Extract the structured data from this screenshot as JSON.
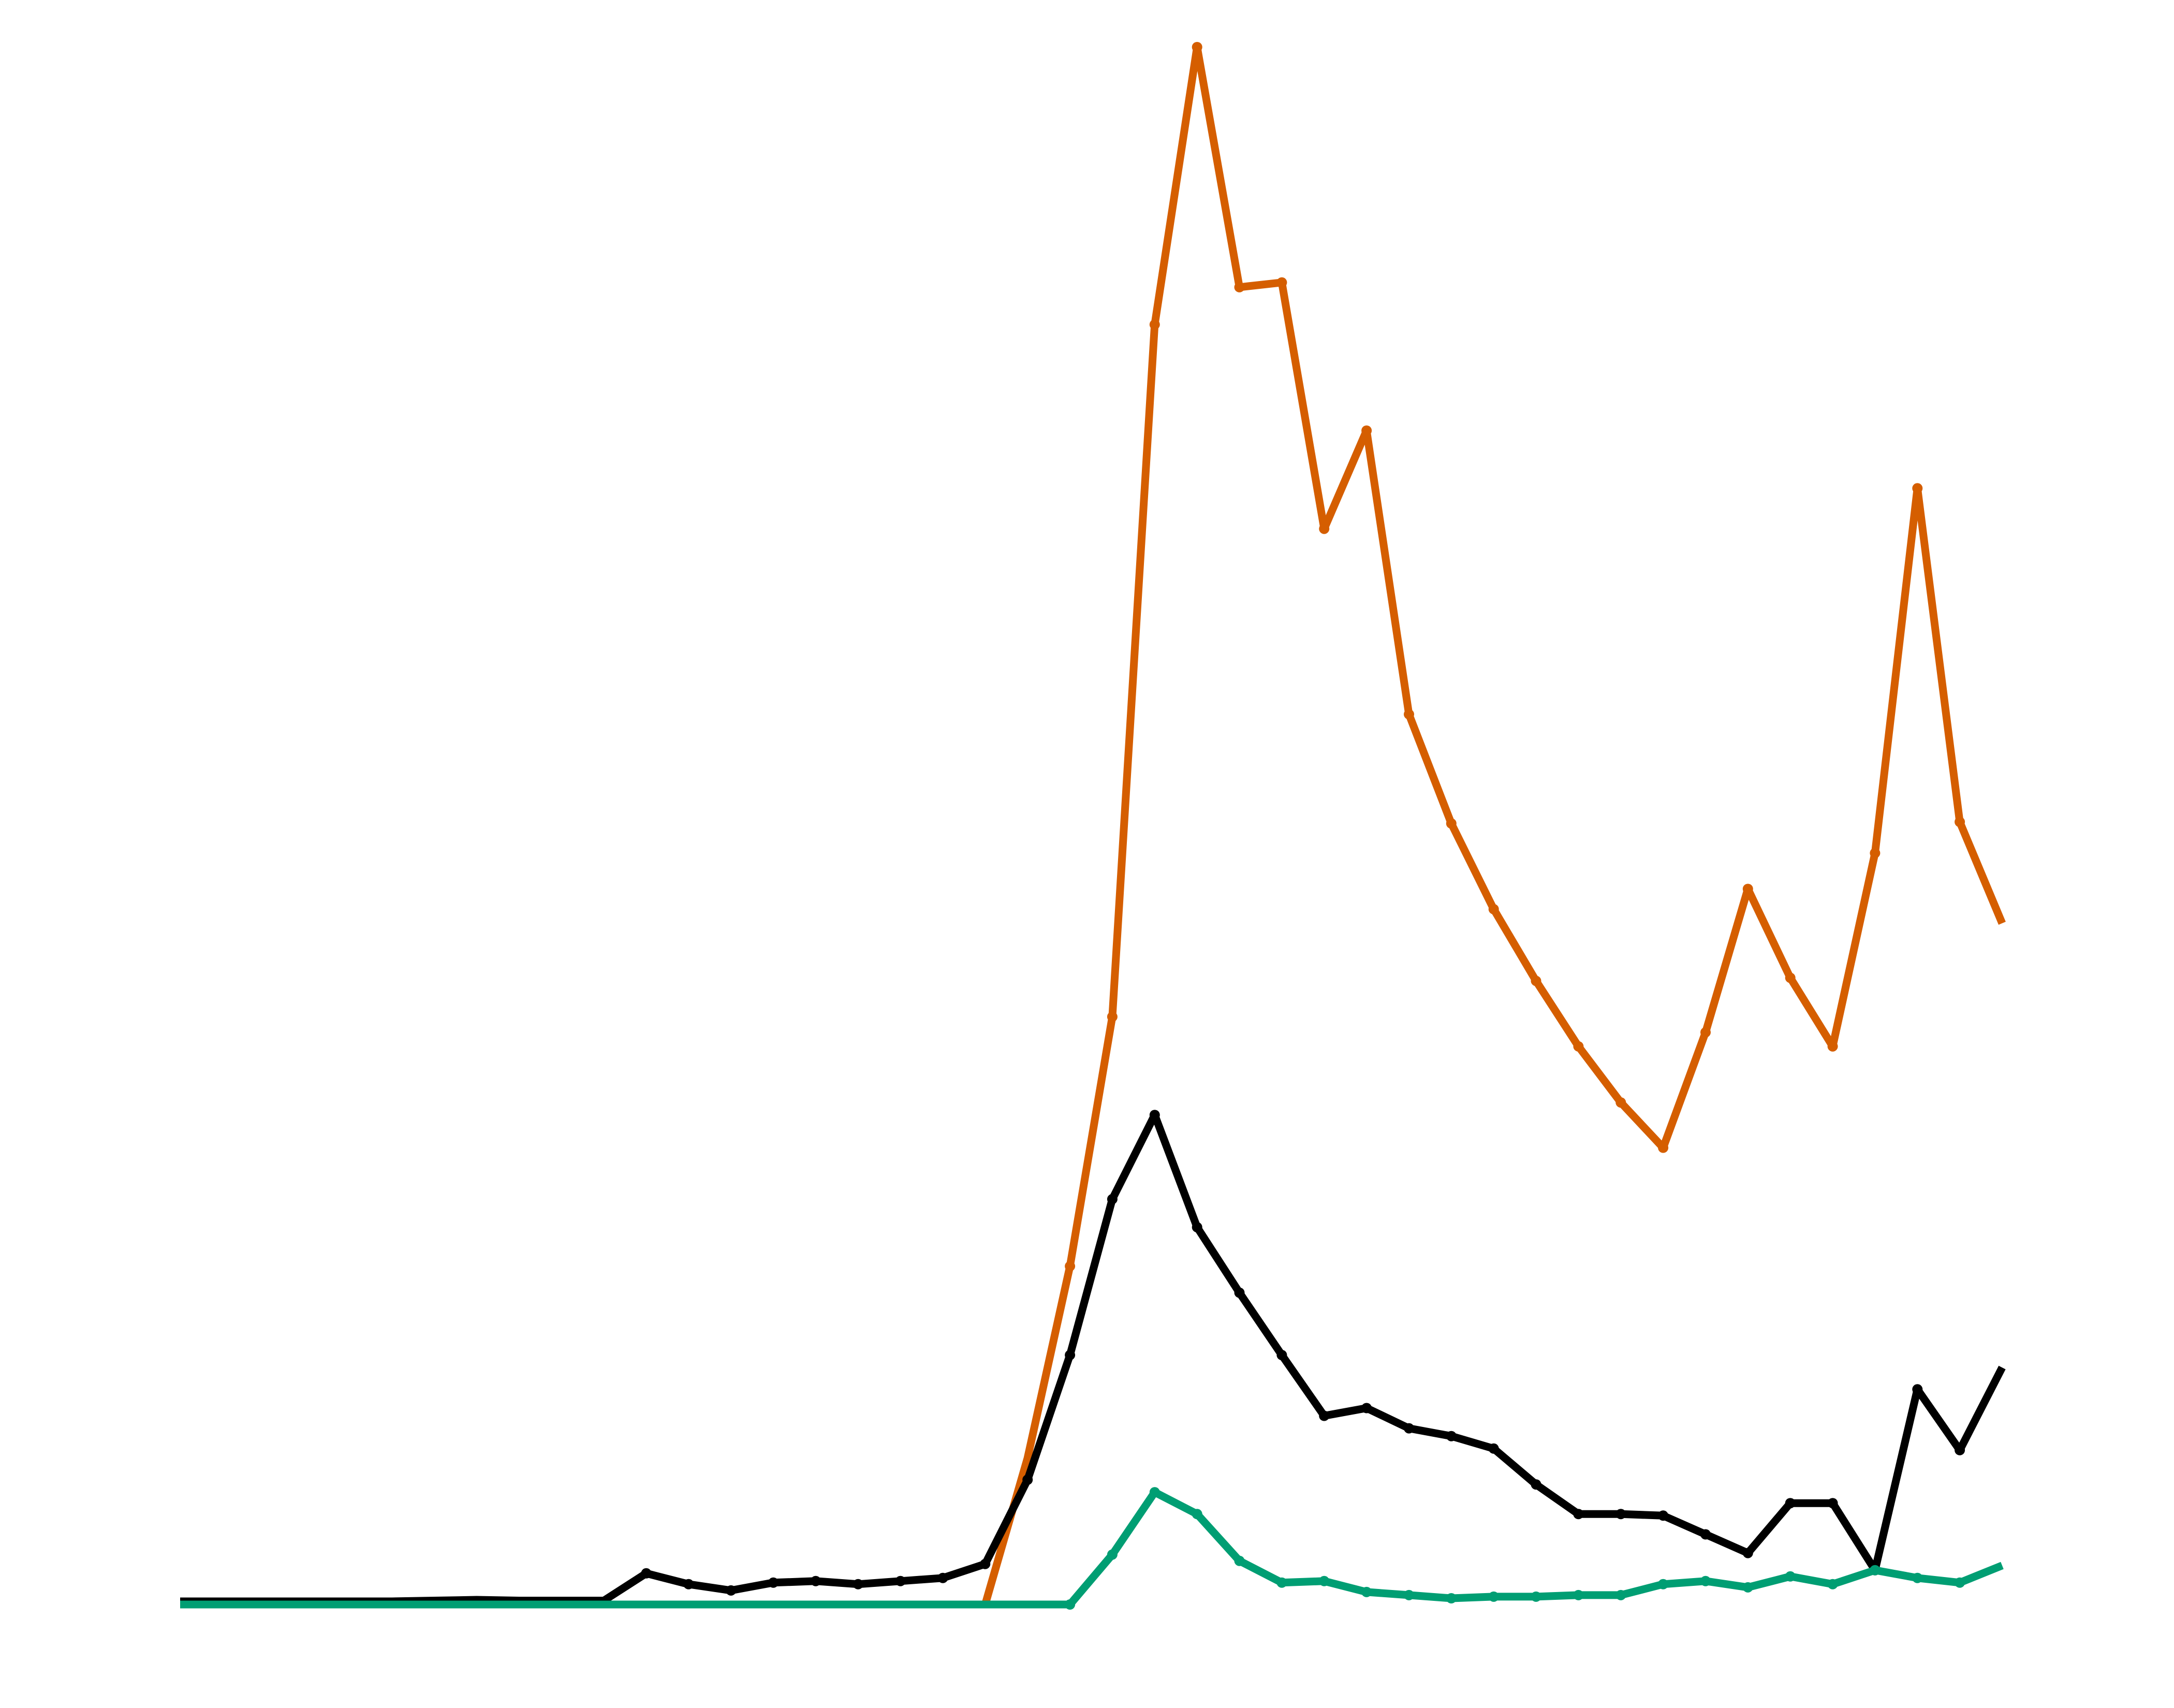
{
  "chart_data": {
    "type": "line",
    "title": "",
    "xlabel": "",
    "ylabel": "",
    "grid": false,
    "axes_visible": false,
    "legend": "none",
    "x": [
      0,
      1,
      2,
      3,
      4,
      5,
      6,
      7,
      8,
      9,
      10,
      11,
      12,
      13,
      14,
      15,
      16,
      17,
      18,
      19,
      20,
      21,
      22,
      23,
      24,
      25,
      26,
      27,
      28,
      29,
      30,
      31,
      32,
      33,
      34,
      35,
      36,
      37,
      38,
      39,
      40,
      41,
      42,
      43
    ],
    "xlim": [
      0,
      43
    ],
    "ylim": [
      0,
      100
    ],
    "series": [
      {
        "color": "#d55e00",
        "values": [
          0,
          0,
          0,
          0,
          0,
          0,
          0,
          0,
          0,
          0,
          0,
          0,
          0,
          0,
          0,
          0,
          0,
          0,
          0,
          0,
          9.4,
          21.7,
          37.7,
          82.1,
          99.9,
          84.5,
          84.8,
          69.0,
          75.3,
          57.1,
          50.1,
          44.6,
          40.0,
          35.8,
          32.2,
          29.3,
          36.7,
          45.9,
          40.2,
          35.8,
          48.2,
          71.6,
          50.2,
          43.7
        ],
        "marked": [
          21,
          22,
          23,
          24,
          25,
          26,
          27,
          28,
          29,
          30,
          31,
          32,
          33,
          34,
          35,
          36,
          37,
          38,
          39,
          40,
          41,
          42
        ]
      },
      {
        "color": "#000000",
        "values": [
          0.2,
          0.2,
          0.2,
          0.2,
          0.2,
          0.2,
          0.25,
          0.3,
          0.25,
          0.25,
          0.25,
          2.0,
          1.3,
          0.9,
          1.4,
          1.5,
          1.3,
          1.5,
          1.7,
          2.6,
          8.0,
          16.0,
          26.0,
          31.4,
          24.2,
          20.0,
          16.0,
          12.1,
          12.6,
          11.3,
          10.8,
          10.0,
          7.7,
          5.8,
          5.8,
          5.7,
          4.5,
          3.3,
          6.5,
          6.5,
          2.2,
          13.8,
          9.9,
          15.2
        ],
        "marked": [
          11,
          12,
          13,
          14,
          15,
          16,
          17,
          18,
          19,
          20,
          21,
          22,
          23,
          24,
          25,
          26,
          27,
          28,
          29,
          30,
          31,
          32,
          33,
          34,
          35,
          36,
          37,
          38,
          39,
          40,
          41,
          42
        ]
      },
      {
        "color": "#009e73",
        "values": [
          0,
          0,
          0,
          0,
          0,
          0,
          0,
          0,
          0,
          0,
          0,
          0,
          0,
          0,
          0,
          0,
          0,
          0,
          0,
          0,
          0,
          0,
          3.2,
          7.2,
          5.8,
          2.8,
          1.4,
          1.5,
          0.8,
          0.6,
          0.4,
          0.5,
          0.5,
          0.6,
          0.6,
          1.3,
          1.5,
          1.1,
          1.8,
          1.3,
          2.2,
          1.7,
          1.4,
          2.5
        ],
        "marked": [
          21,
          22,
          23,
          24,
          25,
          26,
          27,
          28,
          29,
          30,
          31,
          32,
          33,
          34,
          35,
          36,
          37,
          38,
          39,
          40,
          41,
          42
        ]
      }
    ]
  }
}
